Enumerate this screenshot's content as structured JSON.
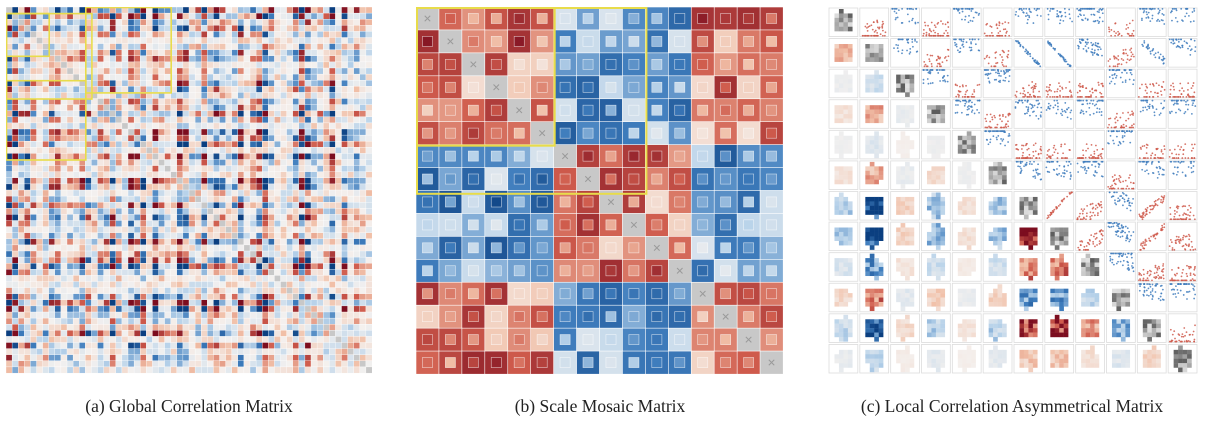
{
  "figure": {
    "panels": [
      {
        "id": "a",
        "caption": "(a) Global Correlation Matrix",
        "grid": 60,
        "highlight_color": "#e8dc4a"
      },
      {
        "id": "b",
        "caption": "(b) Scale Mosaic Matrix",
        "grid": 16,
        "highlight_color": "#e8dc4a"
      },
      {
        "id": "c",
        "caption": "(c) Local Correlation Asymmetrical Matrix",
        "grid": 12
      }
    ],
    "palette": {
      "negative_strong": "#0b3f80",
      "negative_mid": "#3f7dbd",
      "negative_weak": "#b9d3ea",
      "neutral": "#f4f1ef",
      "positive_weak": "#f1c0a8",
      "positive_mid": "#cf5b4c",
      "positive_strong": "#7c0d1f",
      "diagonal": "#c8c8c8"
    }
  }
}
